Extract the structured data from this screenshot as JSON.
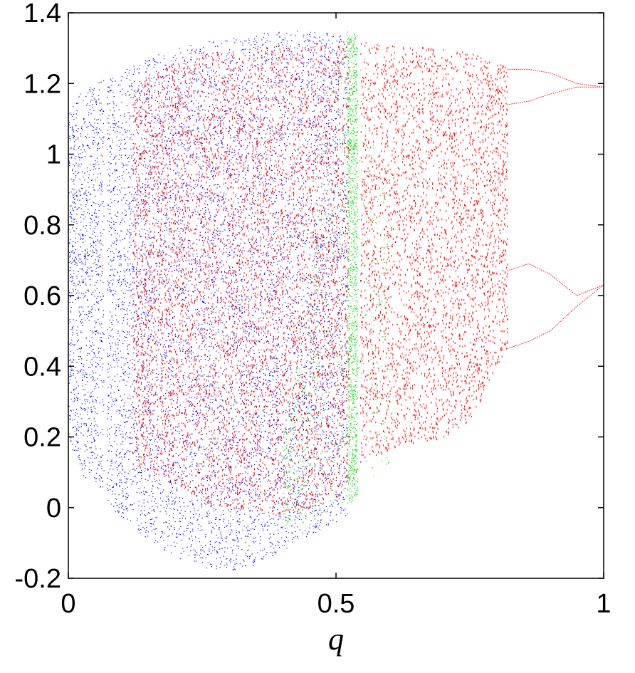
{
  "chart_data": {
    "type": "scatter",
    "title": "",
    "xlabel": "q",
    "ylabel": "",
    "xlim": [
      0,
      1
    ],
    "ylim": [
      -0.2,
      1.4
    ],
    "xticks": [
      0,
      0.5,
      1
    ],
    "xtick_labels": [
      "0",
      "0.5",
      "1"
    ],
    "yticks": [
      -0.2,
      0,
      0.2,
      0.4,
      0.6,
      0.8,
      1,
      1.2,
      1.4
    ],
    "ytick_labels": [
      "-0.2",
      "0",
      "0.2",
      "0.4",
      "0.6",
      "0.8",
      "1",
      "1.2",
      "1.4"
    ],
    "grid": false,
    "legend": "none",
    "description_of_series": "bifurcation diagram rendered as dense point clouds",
    "series": [
      {
        "color": "#0000ff",
        "envelope": {
          "q": [
            0.0,
            0.02,
            0.05,
            0.08,
            0.12,
            0.16,
            0.2,
            0.25,
            0.3,
            0.35,
            0.4,
            0.45,
            0.5,
            0.52
          ],
          "y_min": [
            0.2,
            0.1,
            0.06,
            0.0,
            -0.06,
            -0.1,
            -0.14,
            -0.17,
            -0.18,
            -0.16,
            -0.12,
            -0.08,
            -0.04,
            -0.02
          ],
          "y_max": [
            1.12,
            1.17,
            1.2,
            1.22,
            1.25,
            1.28,
            1.3,
            1.32,
            1.33,
            1.34,
            1.35,
            1.35,
            1.34,
            1.33
          ]
        },
        "gaps_q": [
          [
            0.066,
            0.072
          ]
        ]
      },
      {
        "color": "#ff0000",
        "envelope": {
          "q": [
            0.12,
            0.15,
            0.2,
            0.25,
            0.3,
            0.4,
            0.5,
            0.55,
            0.6,
            0.7,
            0.75,
            0.8,
            0.82
          ],
          "y_min": [
            0.12,
            0.1,
            0.07,
            0.02,
            0.0,
            -0.02,
            0.02,
            0.14,
            0.16,
            0.2,
            0.24,
            0.4,
            0.45
          ],
          "y_max": [
            1.18,
            1.22,
            1.26,
            1.28,
            1.3,
            1.31,
            1.32,
            1.32,
            1.31,
            1.3,
            1.29,
            1.26,
            1.25
          ]
        },
        "gaps_q": [
          [
            0.525,
            0.545
          ]
        ],
        "periodic_branches": [
          {
            "q": [
              0.82,
              0.86,
              0.9,
              0.95,
              1.0
            ],
            "y": [
              0.67,
              0.69,
              0.66,
              0.6,
              0.63
            ]
          },
          {
            "q": [
              0.82,
              0.86,
              0.9,
              0.95,
              1.0
            ],
            "y": [
              0.45,
              0.47,
              0.5,
              0.57,
              0.63
            ]
          },
          {
            "q": [
              0.82,
              0.86,
              0.9,
              0.95,
              1.0
            ],
            "y": [
              1.24,
              1.24,
              1.23,
              1.2,
              1.19
            ]
          },
          {
            "q": [
              0.82,
              0.86,
              0.9,
              0.95,
              1.0
            ],
            "y": [
              1.14,
              1.15,
              1.17,
              1.19,
              1.19
            ]
          }
        ]
      },
      {
        "color": "#00e000",
        "envelope": {
          "q": [
            0.4,
            0.45,
            0.5,
            0.52,
            0.55,
            0.6
          ],
          "y_min": [
            -0.06,
            -0.05,
            -0.02,
            0.0,
            0.05,
            0.12
          ],
          "y_max": [
            0.2,
            0.6,
            1.3,
            1.35,
            1.33,
            0.8
          ]
        },
        "band_q": [
          0.52,
          0.54
        ]
      }
    ]
  }
}
